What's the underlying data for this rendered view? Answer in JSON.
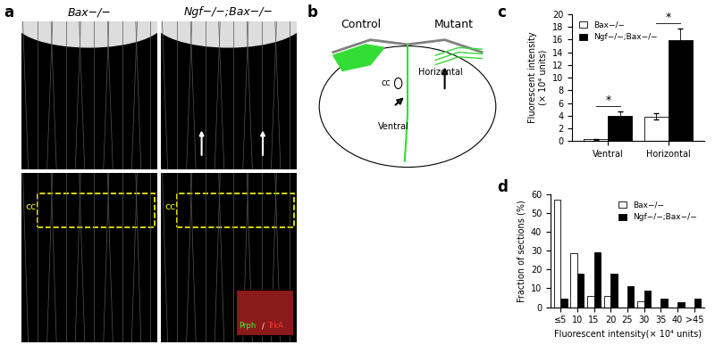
{
  "panel_labels": [
    "a",
    "b",
    "c",
    "d"
  ],
  "panel_a": {
    "columns": [
      "Bax−/−",
      "Ngf−/−;Bax−/−"
    ],
    "region_label": "cc",
    "inset_labels": [
      "Prph",
      "/",
      "TrkA"
    ]
  },
  "panel_b": {
    "columns": [
      "Control",
      "Mutant"
    ],
    "horizontal_label": "Horizontal",
    "ventral_label": "Ventral",
    "region_label": "cc"
  },
  "chart_data": [
    {
      "type": "bar",
      "y_label": "Fluorescent intensity\n(× 10⁴ units)",
      "categories": [
        "Ventral",
        "Horizontal"
      ],
      "series": [
        {
          "name": "Bax−/−",
          "color": "#ffffff",
          "values": [
            0.3,
            3.9
          ],
          "errors": [
            0.1,
            0.5
          ]
        },
        {
          "name": "Ngf−/−;Bax−/−",
          "color": "#000000",
          "values": [
            4.0,
            15.9
          ],
          "errors": [
            0.7,
            1.9
          ]
        }
      ],
      "annotations": [
        "*",
        "*"
      ],
      "ylim": [
        0,
        20
      ],
      "yticks": [
        0,
        2,
        4,
        6,
        8,
        10,
        12,
        14,
        16,
        18,
        20
      ],
      "legend": "upper left"
    },
    {
      "type": "bar",
      "x_label": "Fluorescent intensity(× 10⁴ units)",
      "y_label": "Fraction of sections (%)",
      "categories": [
        "≤5",
        "10",
        "15",
        "20",
        "25",
        "30",
        "35",
        "40",
        ">45"
      ],
      "series": [
        {
          "name": "Bax−/−",
          "color": "#ffffff",
          "values": [
            57,
            28.5,
            6,
            6,
            0,
            3,
            0,
            0,
            0
          ]
        },
        {
          "name": "Ngf−/−;Bax−/−",
          "color": "#000000",
          "values": [
            4.5,
            18,
            29,
            18,
            11,
            9,
            4.5,
            2.5,
            4.5
          ]
        }
      ],
      "ylim": [
        0,
        60
      ],
      "yticks": [
        0,
        10,
        20,
        30,
        40,
        50,
        60
      ],
      "legend": "upper right"
    }
  ]
}
